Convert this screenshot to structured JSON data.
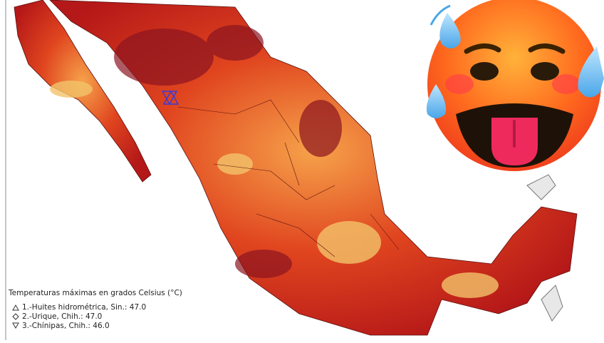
{
  "legend": {
    "title": "Temperaturas máximas en grados Celsius (°C)",
    "items": [
      "1.-Huites hidrométrica, Sin.: 47.0",
      "2.-Urique, Chih.: 47.0",
      "3.-Chínipas, Chih.: 46.0"
    ]
  }
}
